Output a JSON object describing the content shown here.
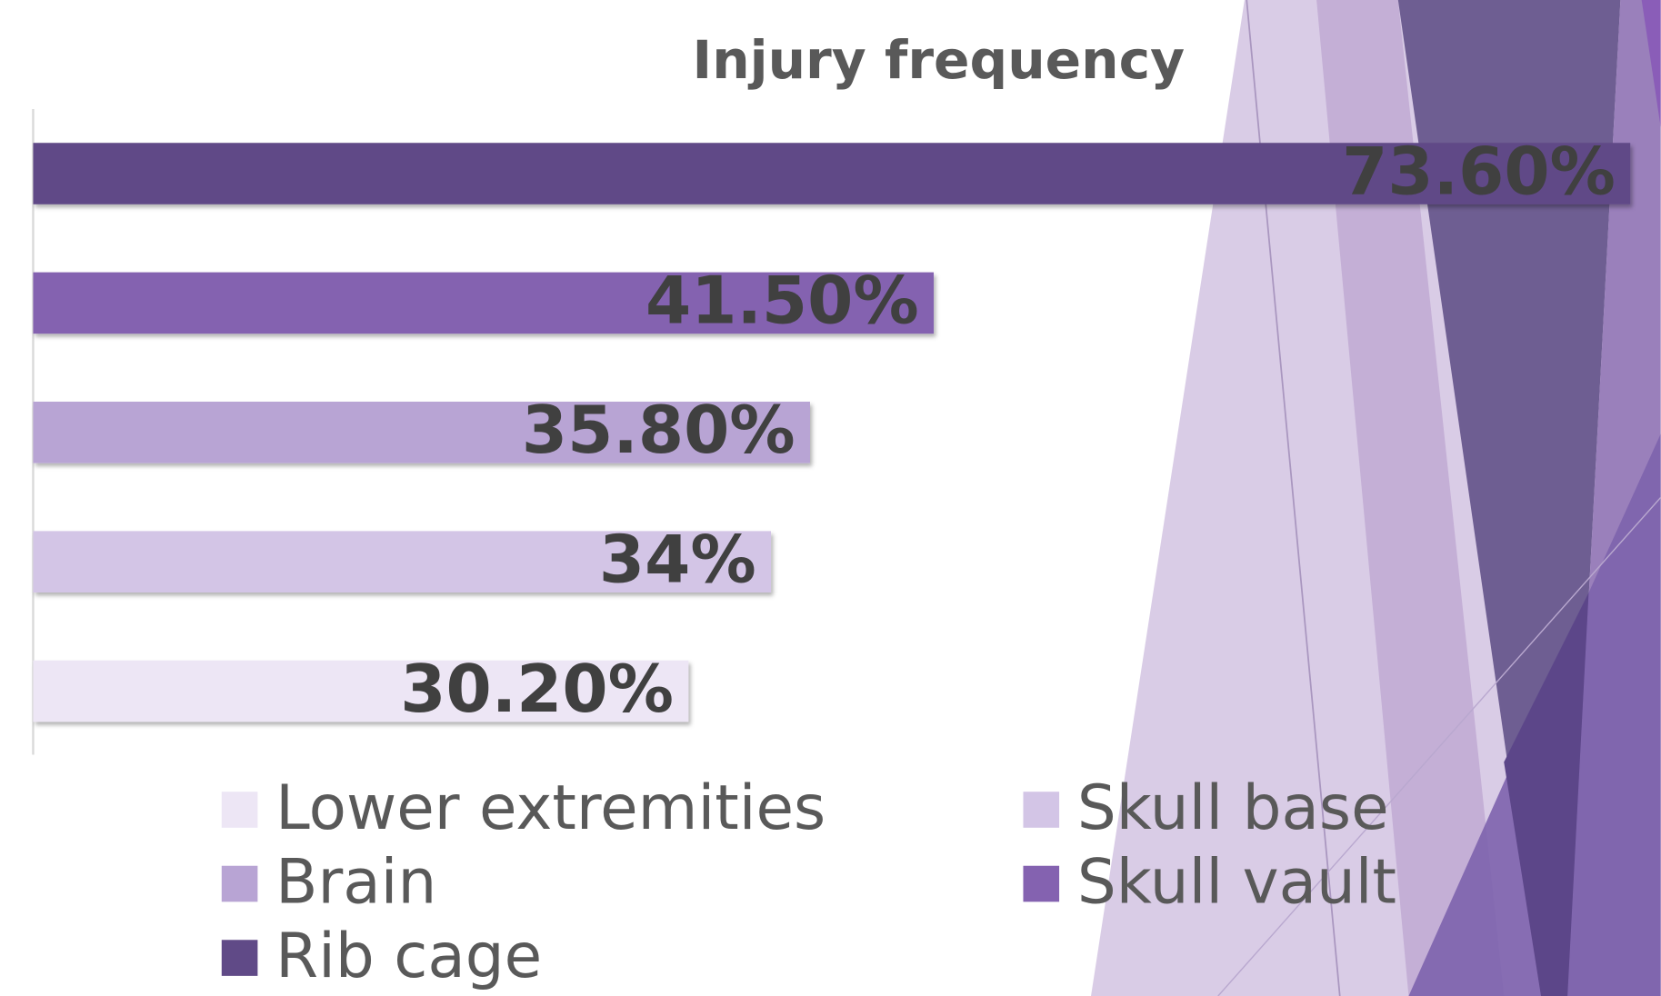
{
  "chart_data": {
    "type": "bar",
    "orientation": "horizontal",
    "title": "Injury frequency",
    "categories": [
      null
    ],
    "xlim": [
      0,
      75
    ],
    "series": [
      {
        "name": "Lower extremities",
        "color": "#ede6f5",
        "values": [
          30.2
        ],
        "value_labels": [
          "30.20%"
        ]
      },
      {
        "name": "Skull base",
        "color": "#d3c5e6",
        "values": [
          34
        ],
        "value_labels": [
          "34%"
        ]
      },
      {
        "name": "Brain",
        "color": "#b8a4d4",
        "values": [
          35.8
        ],
        "value_labels": [
          "35.80%"
        ]
      },
      {
        "name": "Skull vault",
        "color": "#8462b0",
        "values": [
          41.5
        ],
        "value_labels": [
          "41.50%"
        ]
      },
      {
        "name": "Rib cage",
        "color": "#604a87",
        "values": [
          73.6
        ],
        "value_labels": [
          "73.60%"
        ]
      }
    ],
    "legend": "bottom"
  }
}
